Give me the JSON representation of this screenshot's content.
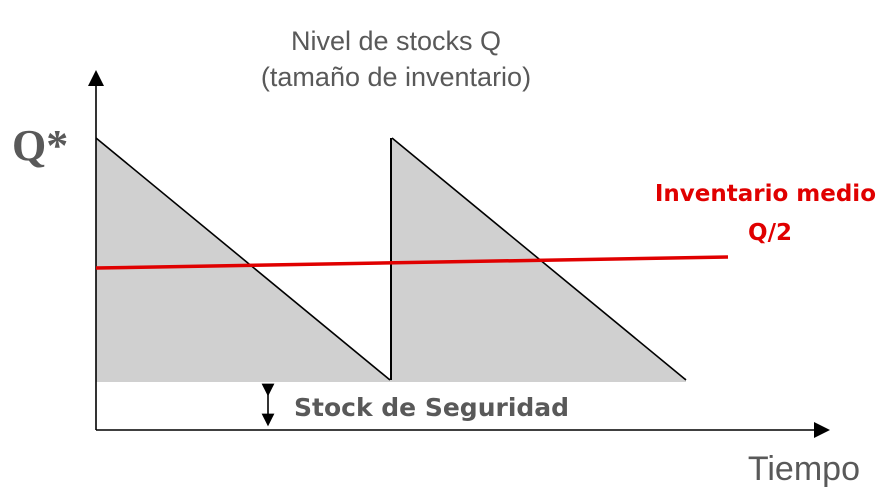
{
  "title": {
    "line1": "Nivel de stocks Q",
    "line2": "(tamaño de inventario)"
  },
  "y_max_label": "Q*",
  "average": {
    "line1": "Inventario medio",
    "line2": "Q/2",
    "color": "#e00000"
  },
  "safety_stock_label": "Stock de Seguridad",
  "x_axis_label": "Tiempo",
  "colors": {
    "fill": "#d0d0d0",
    "stroke": "#000000",
    "text": "#595959"
  }
}
